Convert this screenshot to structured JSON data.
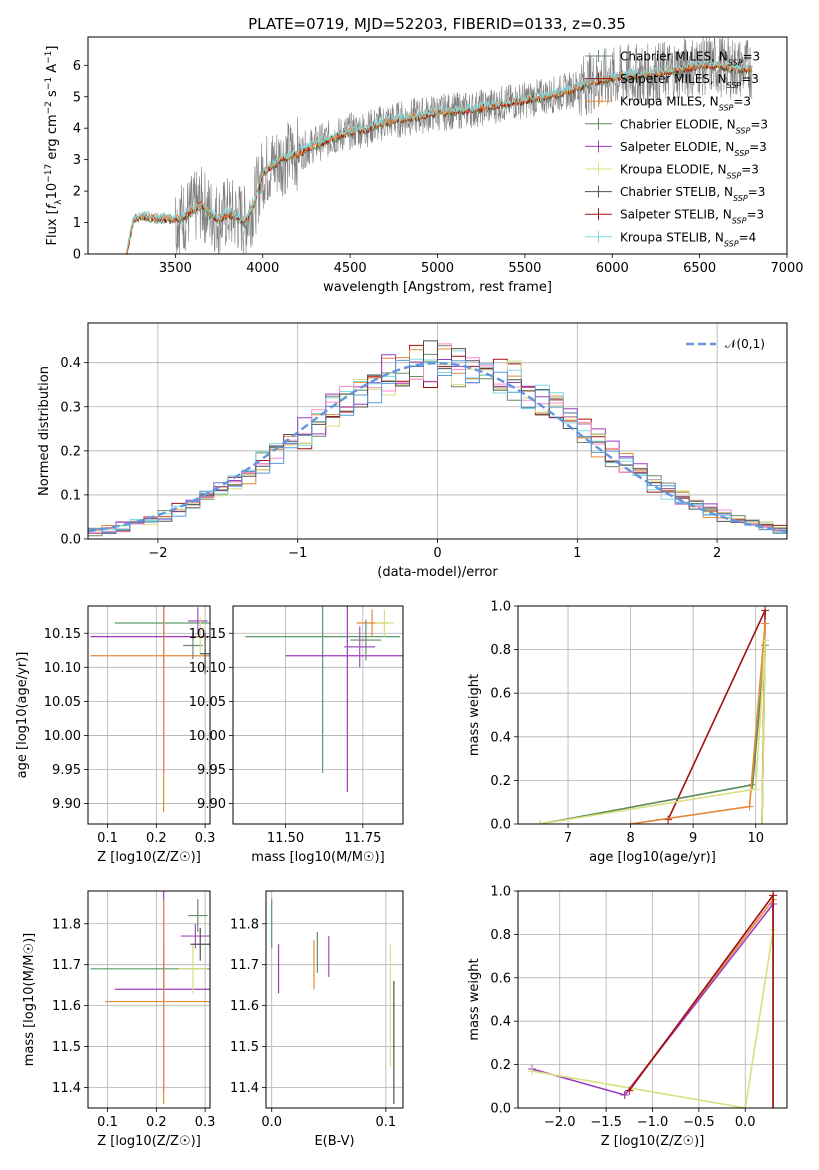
{
  "figure": {
    "title": "PLATE=0719, MJD=52203, FIBERID=0133, z=0.35"
  },
  "colors": {
    "gray": "#808080",
    "blue_dash": "#6495dd",
    "series": [
      "#5a9a6a",
      "#9a3bbf",
      "#e58a3a",
      "#6a8a6a",
      "#a050c0",
      "#d8e080",
      "#505050",
      "#a01010",
      "#80d8e0",
      "#ff88cc"
    ]
  },
  "chart_data": [
    {
      "id": "spectrum",
      "type": "line",
      "title": "PLATE=0719, MJD=52203, FIBERID=0133, z=0.35",
      "xlabel": "wavelength [Angstrom, rest frame]",
      "ylabel": "Flux [f_λ 10^-17 erg cm^-2 s^-1 A^-1]",
      "xlim": [
        3000,
        7000
      ],
      "ylim": [
        0,
        6.9
      ],
      "xticks": [
        3500,
        4000,
        4500,
        5000,
        5500,
        6000,
        6500,
        7000
      ],
      "yticks": [
        0,
        1,
        2,
        3,
        4,
        5,
        6
      ],
      "legend": [
        "Chabrier MILES, N_SSP=3",
        "Salpeter MILES, N_SSP=3",
        "Kroupa MILES, N_SSP=3",
        "Chabrier ELODIE, N_SSP=3",
        "Salpeter ELODIE, N_SSP=3",
        "Kroupa ELODIE, N_SSP=3",
        "Chabrier STELIB, N_SSP=3",
        "Salpeter STELIB, N_SSP=3",
        "Kroupa STELIB, N_SSP=4"
      ],
      "legend_position": "top-right",
      "model_knots": {
        "x": [
          3220,
          3260,
          3300,
          3400,
          3500,
          3550,
          3600,
          3650,
          3700,
          3750,
          3800,
          3850,
          3900,
          3950,
          4000,
          4100,
          4200,
          4300,
          4400,
          4500,
          4600,
          4700,
          4800,
          4900,
          5000,
          5100,
          5200,
          5300,
          5400,
          5500,
          5600,
          5700,
          5800,
          5900,
          6000,
          6100,
          6200,
          6300,
          6400,
          6500,
          6600,
          6700,
          6800
        ],
        "y": [
          0.0,
          1.1,
          1.2,
          1.15,
          1.1,
          1.2,
          1.4,
          1.6,
          1.3,
          1.1,
          1.3,
          1.2,
          1.0,
          1.6,
          2.6,
          3.0,
          3.2,
          3.5,
          3.7,
          3.9,
          4.0,
          4.2,
          4.3,
          4.4,
          4.5,
          4.55,
          4.6,
          4.7,
          4.8,
          4.9,
          5.0,
          5.1,
          5.3,
          5.5,
          5.6,
          5.7,
          5.7,
          5.8,
          5.9,
          6.0,
          6.0,
          5.9,
          5.9
        ]
      }
    },
    {
      "id": "residual-hist",
      "type": "line",
      "xlabel": "(data-model)/error",
      "ylabel": "Normed distribution",
      "xlim": [
        -2.5,
        2.5
      ],
      "ylim": [
        0,
        0.49
      ],
      "xticks": [
        -2,
        -1,
        0,
        1,
        2
      ],
      "yticks": [
        0.0,
        0.1,
        0.2,
        0.3,
        0.4
      ],
      "legend": [
        "𝒩(0,1)"
      ],
      "legend_position": "top-right"
    },
    {
      "id": "age-vs-z",
      "type": "scatter",
      "xlabel": "Z [log10(Z/Z☉)]",
      "ylabel": "age  [log10(age/yr)]",
      "xlim": [
        0.06,
        0.31
      ],
      "ylim": [
        9.87,
        10.19
      ],
      "xticks": [
        0.1,
        0.2,
        0.3
      ],
      "yticks": [
        9.9,
        9.95,
        10.0,
        10.05,
        10.1,
        10.15
      ],
      "points": [
        {
          "x": 0.215,
          "y": 10.165,
          "xerr": 0.1,
          "yerr": 0.02
        },
        {
          "x": 0.215,
          "y": 10.145,
          "xerr": 0.15,
          "yerr": 0.2
        },
        {
          "x": 0.215,
          "y": 10.117,
          "xerr": 0.15,
          "yerr": 0.23
        },
        {
          "x": 0.275,
          "y": 10.132,
          "xerr": 0.02,
          "yerr": 0.02
        },
        {
          "x": 0.285,
          "y": 10.168,
          "xerr": 0.02,
          "yerr": 0.02
        },
        {
          "x": 0.29,
          "y": 10.144,
          "xerr": 0.015,
          "yerr": 0.03
        },
        {
          "x": 0.3,
          "y": 10.12,
          "xerr": 0.01,
          "yerr": 0.03
        }
      ]
    },
    {
      "id": "age-vs-mass",
      "type": "scatter",
      "xlabel": "mass [log10(M/M☉)]",
      "ylabel": "",
      "xlim": [
        11.33,
        11.88
      ],
      "ylim": [
        9.87,
        10.19
      ],
      "xticks": [
        11.5,
        11.75
      ],
      "yticks": [
        9.9,
        9.95,
        10.0,
        10.05,
        10.1,
        10.15
      ],
      "points": [
        {
          "x": 11.62,
          "y": 10.145,
          "xerr": 0.25,
          "yerr": 0.2
        },
        {
          "x": 11.7,
          "y": 10.117,
          "xerr": 0.2,
          "yerr": 0.2
        },
        {
          "x": 11.78,
          "y": 10.165,
          "xerr": 0.05,
          "yerr": 0.02
        },
        {
          "x": 11.76,
          "y": 10.14,
          "xerr": 0.05,
          "yerr": 0.03
        },
        {
          "x": 11.74,
          "y": 10.13,
          "xerr": 0.05,
          "yerr": 0.03
        },
        {
          "x": 11.82,
          "y": 10.165,
          "xerr": 0.03,
          "yerr": 0.02
        }
      ]
    },
    {
      "id": "weight-vs-age",
      "type": "line",
      "xlabel": "age  [log10(age/yr)]",
      "ylabel": "mass weight",
      "xlim": [
        6.2,
        10.5
      ],
      "ylim": [
        0,
        1.0
      ],
      "xticks": [
        7,
        8,
        9,
        10
      ],
      "yticks": [
        0.0,
        0.2,
        0.4,
        0.6,
        0.8,
        1.0
      ],
      "series": [
        {
          "x": [
            8.6,
            10.15,
            10.1
          ],
          "y": [
            0.02,
            0.98,
            0.0
          ]
        },
        {
          "x": [
            6.55,
            9.95,
            10.15,
            10.1
          ],
          "y": [
            0.0,
            0.18,
            0.82,
            0.0
          ]
        },
        {
          "x": [
            8.0,
            9.9,
            10.15,
            10.1
          ],
          "y": [
            0.0,
            0.08,
            0.92,
            0.0
          ]
        },
        {
          "x": [
            6.55,
            10.0,
            10.15,
            10.1
          ],
          "y": [
            0.0,
            0.16,
            0.84,
            0.0
          ]
        }
      ]
    },
    {
      "id": "mass-vs-z",
      "type": "scatter",
      "xlabel": "Z [log10(Z/Z☉)]",
      "ylabel": "mass [log10(M/M☉)]",
      "xlim": [
        0.06,
        0.31
      ],
      "ylim": [
        11.35,
        11.88
      ],
      "xticks": [
        0.1,
        0.2,
        0.3
      ],
      "yticks": [
        11.4,
        11.5,
        11.6,
        11.7,
        11.8
      ],
      "points": [
        {
          "x": 0.215,
          "y": 11.69,
          "xerr": 0.15,
          "yerr": 0.05
        },
        {
          "x": 0.215,
          "y": 11.64,
          "xerr": 0.1,
          "yerr": 0.25
        },
        {
          "x": 0.215,
          "y": 11.61,
          "xerr": 0.12,
          "yerr": 0.25
        },
        {
          "x": 0.285,
          "y": 11.82,
          "xerr": 0.02,
          "yerr": 0.04
        },
        {
          "x": 0.28,
          "y": 11.77,
          "xerr": 0.03,
          "yerr": 0.03
        },
        {
          "x": 0.275,
          "y": 11.69,
          "xerr": 0.03,
          "yerr": 0.06
        },
        {
          "x": 0.29,
          "y": 11.75,
          "xerr": 0.02,
          "yerr": 0.04
        }
      ]
    },
    {
      "id": "mass-vs-ebv",
      "type": "scatter",
      "xlabel": "E(B-V)",
      "ylabel": "",
      "xlim": [
        -0.005,
        0.115
      ],
      "ylim": [
        11.35,
        11.88
      ],
      "xticks": [
        0.0,
        0.1
      ],
      "yticks": [
        11.4,
        11.5,
        11.6,
        11.7,
        11.8
      ],
      "points": [
        {
          "x": 0.0,
          "y": 11.8,
          "xerr": 0,
          "yerr": 0.06
        },
        {
          "x": 0.006,
          "y": 11.69,
          "xerr": 0,
          "yerr": 0.06
        },
        {
          "x": 0.037,
          "y": 11.7,
          "xerr": 0,
          "yerr": 0.06
        },
        {
          "x": 0.04,
          "y": 11.73,
          "xerr": 0,
          "yerr": 0.05
        },
        {
          "x": 0.05,
          "y": 11.72,
          "xerr": 0,
          "yerr": 0.05
        },
        {
          "x": 0.104,
          "y": 11.6,
          "xerr": 0,
          "yerr": 0.15
        },
        {
          "x": 0.107,
          "y": 11.51,
          "xerr": 0,
          "yerr": 0.15
        }
      ]
    },
    {
      "id": "weight-vs-z",
      "type": "line",
      "xlabel": "Z [log10(Z/Z☉)]",
      "ylabel": "mass weight",
      "xlim": [
        -2.45,
        0.45
      ],
      "ylim": [
        0,
        1.0
      ],
      "xticks": [
        -2.0,
        -1.5,
        -1.0,
        -0.5,
        0.0
      ],
      "yticks": [
        0.0,
        0.2,
        0.4,
        0.6,
        0.8,
        1.0
      ],
      "series": [
        {
          "x": [
            -1.3,
            0.3,
            0.3
          ],
          "y": [
            0.06,
            0.96,
            0.0
          ]
        },
        {
          "x": [
            -2.3,
            -1.3,
            0.3,
            0.3
          ],
          "y": [
            0.18,
            0.06,
            0.94,
            0.0
          ]
        },
        {
          "x": [
            -2.3,
            0.0,
            0.3,
            0.3
          ],
          "y": [
            0.17,
            0.0,
            0.82,
            0.0
          ]
        },
        {
          "x": [
            -1.25,
            0.3,
            0.3
          ],
          "y": [
            0.08,
            0.98,
            0.0
          ]
        }
      ]
    }
  ]
}
